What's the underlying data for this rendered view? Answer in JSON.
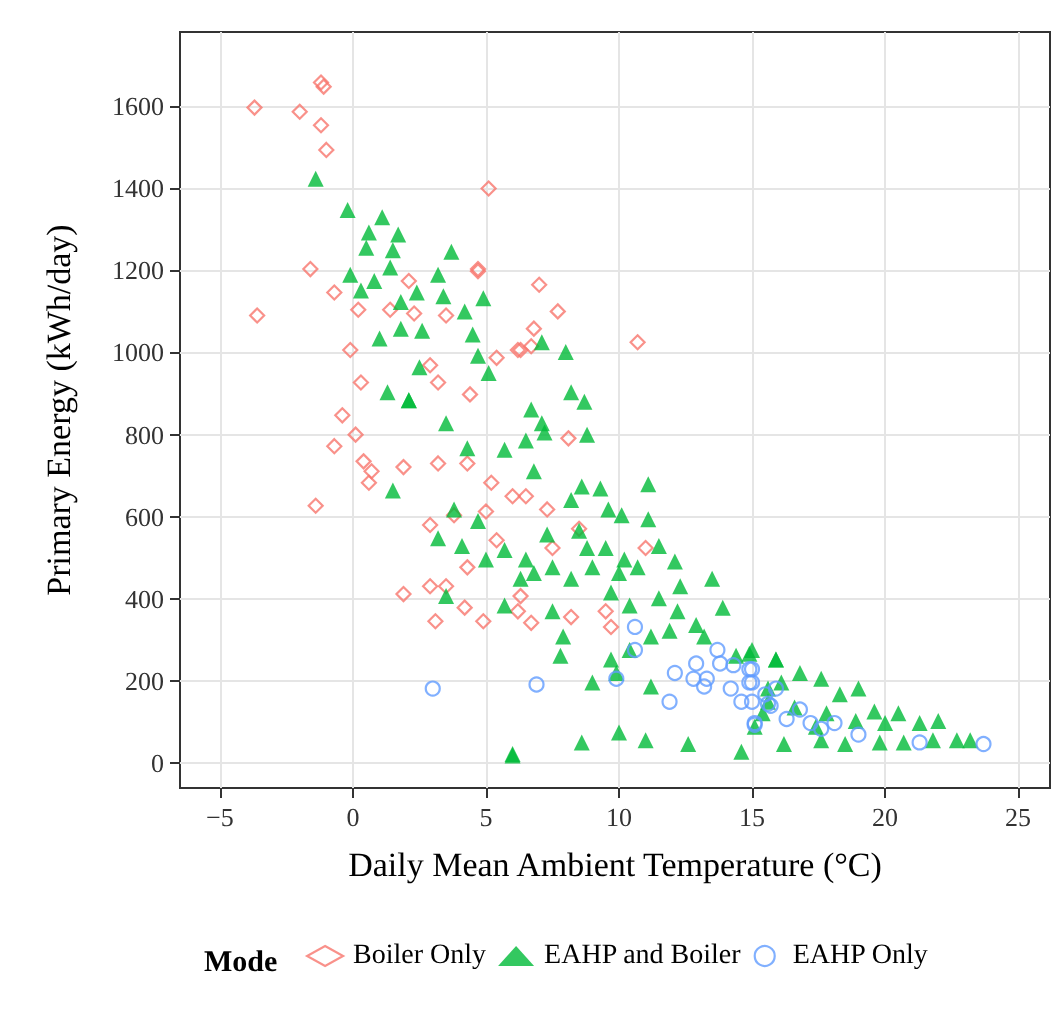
{
  "chart_data": {
    "type": "scatter",
    "xlabel": "Daily Mean Ambient Temperature (°C)",
    "ylabel": "Primary Energy (kWh/day)",
    "legend_title": "Mode",
    "legend": "bottom",
    "grid": true,
    "xlim": [
      -6.5,
      26.2
    ],
    "xticks": [
      {
        "value": -5,
        "label": "−5"
      },
      0,
      5,
      10,
      15,
      20,
      25
    ],
    "ylim": [
      -60,
      1780
    ],
    "yticks": [
      0,
      200,
      400,
      600,
      800,
      1000,
      1200,
      1400,
      1600
    ],
    "series": [
      {
        "name": "Boiler Only",
        "color": "#f8766d",
        "marker": "diamond",
        "x": [
          -3.7,
          -2.0,
          -1.2,
          -1.1,
          -1.2,
          -1.0,
          5.1,
          -1.6,
          -3.6,
          4.7,
          -0.1,
          0.3,
          5.4,
          6.2,
          2.9,
          3.2,
          4.4,
          3.5,
          -0.7,
          0.2,
          1.4,
          2.1,
          2.3,
          7.0,
          6.7,
          10.7,
          4.7,
          -0.4,
          0.1,
          -0.7,
          -1.4,
          0.4,
          0.7,
          0.6,
          1.9,
          2.9,
          1.9,
          3.1,
          2.9,
          3.5,
          4.2,
          4.9,
          4.3,
          5.0,
          3.8,
          3.2,
          4.3,
          5.2,
          6.0,
          6.2,
          5.4,
          7.7,
          6.8,
          6.3,
          8.1,
          11.0,
          6.3,
          6.7,
          9.7,
          8.2,
          7.3,
          8.5,
          6.5,
          7.5,
          9.5
        ],
        "values": [
          1596,
          1586,
          1657,
          1647,
          1553,
          1493,
          1399,
          1203,
          1090,
          1203,
          1006,
          927,
          987,
          1006,
          969,
          927,
          898,
          1090,
          1146,
          1104,
          1104,
          1174,
          1095,
          1165,
          1015,
          1025,
          1198,
          847,
          800,
          772,
          627,
          735,
          711,
          683,
          721,
          580,
          412,
          346,
          431,
          431,
          379,
          346,
          477,
          613,
          604,
          730,
          730,
          683,
          650,
          370,
          543,
          1100,
          1058,
          1006,
          791,
          524,
          407,
          342,
          332,
          356,
          618,
          571,
          650,
          524,
          370
        ]
      },
      {
        "name": "EAHP and Boiler",
        "color": "#00ba38",
        "marker": "triangle",
        "x": [
          -1.4,
          -0.2,
          1.1,
          0.6,
          1.7,
          0.5,
          1.5,
          3.7,
          1.4,
          -0.1,
          3.2,
          2.4,
          3.4,
          4.9,
          1.8,
          4.2,
          4.5,
          1.0,
          1.8,
          2.6,
          4.7,
          5.1,
          2.5,
          1.3,
          2.1,
          0.3,
          0.8,
          7.1,
          8.0,
          8.2,
          8.7,
          6.7,
          7.1,
          7.2,
          6.5,
          8.8,
          6.8,
          8.6,
          9.3,
          11.1,
          11.1,
          8.2,
          9.6,
          10.1,
          11.5,
          12.1,
          13.5,
          13.9,
          12.3,
          10.7,
          10.2,
          9.5,
          8.8,
          9.0,
          7.5,
          6.8,
          8.2,
          9.7,
          10.4,
          11.5,
          12.2,
          12.9,
          13.2,
          11.9,
          11.2,
          10.4,
          9.7,
          9.9,
          7.9,
          7.8,
          9.0,
          11.2,
          8.6,
          10.0,
          11.0,
          12.6,
          14.6,
          6.0,
          7.5,
          6.3,
          7.3,
          8.5,
          10.0,
          14.9,
          14.4,
          15.9,
          15.4,
          15.6,
          1.5,
          3.2,
          4.1,
          3.5,
          6.0,
          5.7,
          5.0,
          5.7,
          6.5,
          4.3,
          5.7,
          3.5,
          2.1,
          4.7,
          3.8,
          15.0,
          15.9,
          16.8,
          17.6,
          19.0,
          18.3,
          19.6,
          20.5,
          21.3,
          22.0,
          22.7,
          23.2,
          21.8,
          20.7,
          19.8,
          18.5,
          17.6,
          16.2,
          15.6,
          16.6,
          17.8,
          18.9,
          20.0,
          17.4,
          16.1,
          15.1
        ],
        "values": [
          1423,
          1347,
          1329,
          1292,
          1287,
          1255,
          1249,
          1245,
          1207,
          1189,
          1189,
          1146,
          1137,
          1132,
          1123,
          1100,
          1044,
          1034,
          1058,
          1053,
          992,
          950,
          964,
          903,
          884,
          1151,
          1174,
          1025,
          1001,
          903,
          880,
          861,
          828,
          805,
          786,
          800,
          711,
          674,
          669,
          679,
          594,
          641,
          618,
          604,
          529,
          491,
          449,
          379,
          431,
          477,
          496,
          524,
          524,
          477,
          477,
          463,
          449,
          416,
          384,
          402,
          370,
          337,
          309,
          323,
          309,
          276,
          253,
          220,
          309,
          262,
          197,
          187,
          51,
          75,
          56,
          47,
          28,
          19,
          370,
          449,
          557,
          566,
          463,
          267,
          262,
          253,
          122,
          182,
          664,
          548,
          529,
          407,
          23,
          384,
          496,
          519,
          496,
          767,
          763,
          828,
          884,
          590,
          618,
          276,
          253,
          220,
          206,
          182,
          168,
          126,
          122,
          98,
          103,
          56,
          56,
          56,
          51,
          51,
          47,
          56,
          47,
          150,
          136,
          122,
          103,
          98,
          89,
          197,
          89
        ]
      },
      {
        "name": "EAHP Only",
        "color": "#619cff",
        "marker": "circle",
        "x": [
          3.0,
          6.9,
          10.6,
          10.6,
          9.9,
          11.9,
          12.1,
          12.9,
          13.2,
          13.7,
          13.8,
          14.2,
          14.3,
          14.9,
          15.0,
          14.6,
          15.1,
          15.6,
          15.9,
          13.3,
          12.8,
          15.0,
          14.9,
          15.0,
          15.5,
          15.7,
          16.3,
          16.8,
          17.2,
          17.6,
          18.1,
          19.0,
          15.1,
          23.7,
          21.3
        ],
        "values": [
          182,
          192,
          332,
          276,
          206,
          150,
          220,
          243,
          187,
          276,
          243,
          182,
          239,
          229,
          197,
          150,
          98,
          145,
          182,
          206,
          206,
          229,
          197,
          150,
          168,
          140,
          108,
          131,
          98,
          84,
          98,
          70,
          94,
          47,
          51
        ]
      }
    ]
  }
}
